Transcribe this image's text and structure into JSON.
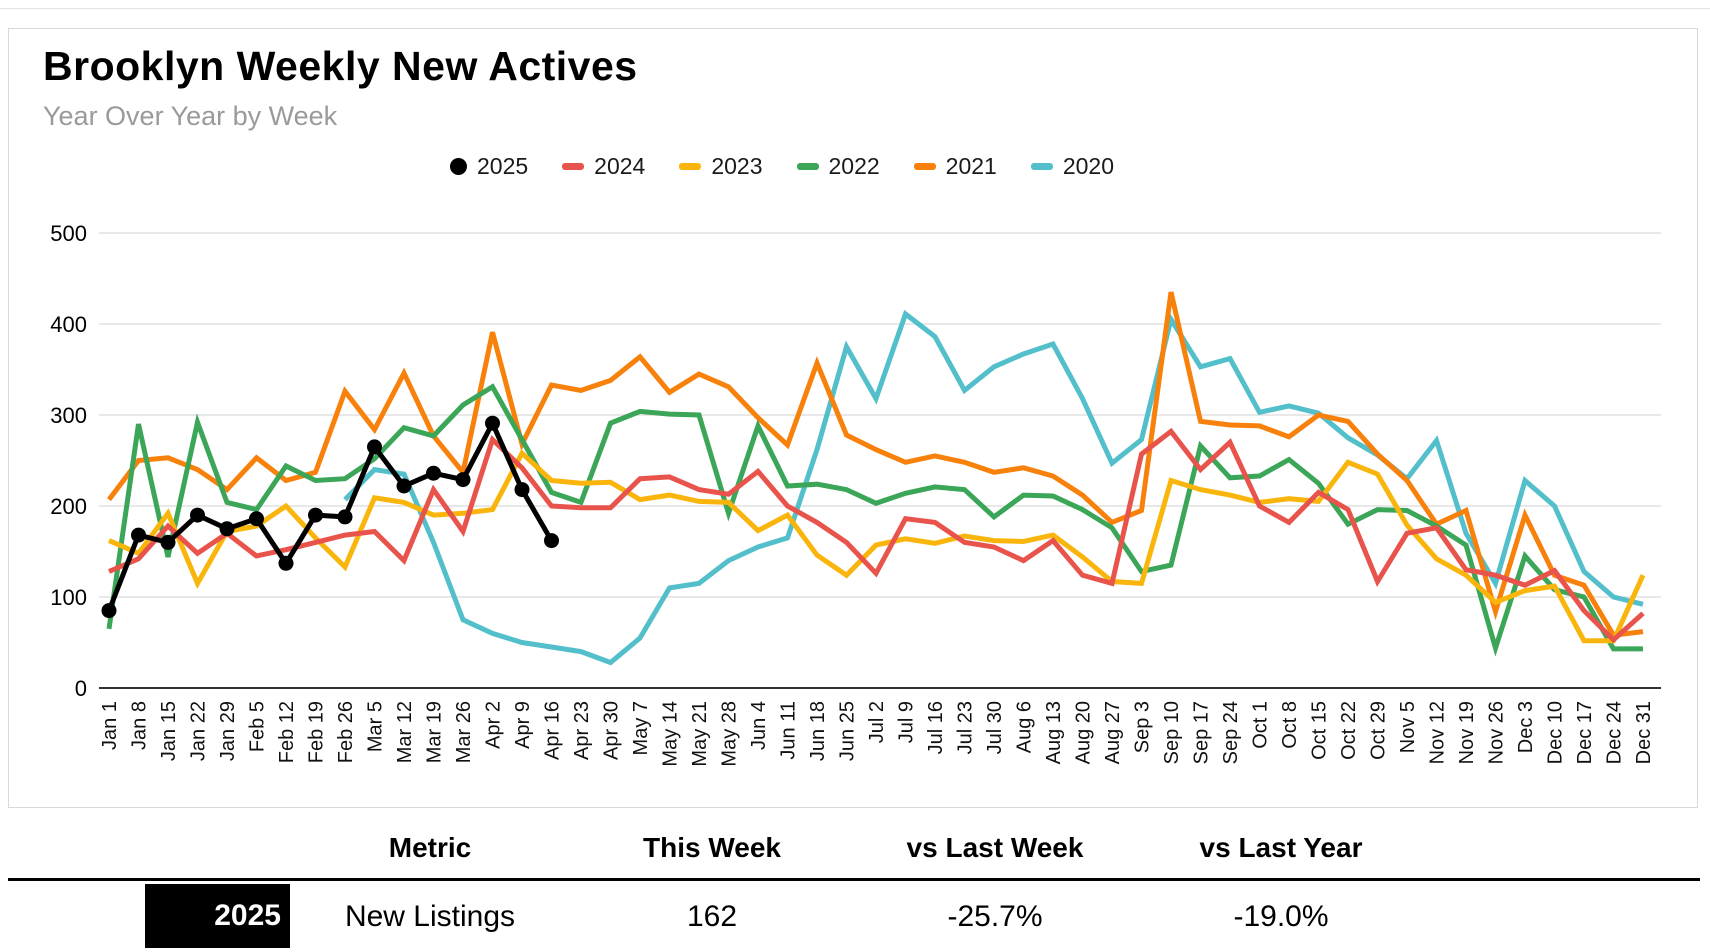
{
  "header": {
    "title": "Brooklyn Weekly New Actives",
    "subtitle": "Year Over Year by Week"
  },
  "colors": {
    "y2025": "#000000",
    "y2024": "#e8544b",
    "y2023": "#f9b50b",
    "y2022": "#3ba558",
    "y2021": "#f8810c",
    "y2020": "#52bfca",
    "grid": "#dadada",
    "axis": "#333333"
  },
  "legend": [
    {
      "label": "2025",
      "color": "#000000",
      "marker": "circle"
    },
    {
      "label": "2024",
      "color": "#e8544b",
      "marker": "dash"
    },
    {
      "label": "2023",
      "color": "#f9b50b",
      "marker": "dash"
    },
    {
      "label": "2022",
      "color": "#3ba558",
      "marker": "dash"
    },
    {
      "label": "2021",
      "color": "#f8810c",
      "marker": "dash"
    },
    {
      "label": "2020",
      "color": "#52bfca",
      "marker": "dash"
    }
  ],
  "chart_data": {
    "type": "line",
    "title": "Brooklyn Weekly New Actives",
    "subtitle": "Year Over Year by Week",
    "xlabel": "",
    "ylabel": "",
    "ylim": [
      0,
      500
    ],
    "yticks": [
      0,
      100,
      200,
      300,
      400,
      500
    ],
    "grid": "horizontal",
    "legend_position": "top-center",
    "x": [
      "Jan 1",
      "Jan 8",
      "Jan 15",
      "Jan 22",
      "Jan 29",
      "Feb 5",
      "Feb 12",
      "Feb 19",
      "Feb 26",
      "Mar 5",
      "Mar 12",
      "Mar 19",
      "Mar 26",
      "Apr 2",
      "Apr 9",
      "Apr 16",
      "Apr 23",
      "Apr 30",
      "May 7",
      "May 14",
      "May 21",
      "May 28",
      "Jun 4",
      "Jun 11",
      "Jun 18",
      "Jun 25",
      "Jul 2",
      "Jul 9",
      "Jul 16",
      "Jul 23",
      "Jul 30",
      "Aug 6",
      "Aug 13",
      "Aug 20",
      "Aug 27",
      "Sep 3",
      "Sep 10",
      "Sep 17",
      "Sep 24",
      "Oct 1",
      "Oct 8",
      "Oct 15",
      "Oct 22",
      "Oct 29",
      "Nov 5",
      "Nov 12",
      "Nov 19",
      "Nov 26",
      "Dec 3",
      "Dec 10",
      "Dec 17",
      "Dec 24",
      "Dec 31"
    ],
    "series": [
      {
        "name": "2020",
        "color": "#52bfca",
        "marker": false,
        "values": [
          null,
          null,
          null,
          null,
          null,
          null,
          null,
          null,
          207,
          240,
          235,
          160,
          75,
          60,
          50,
          45,
          40,
          28,
          55,
          110,
          115,
          140,
          155,
          165,
          262,
          375,
          318,
          411,
          386,
          327,
          353,
          367,
          378,
          318,
          247,
          273,
          405,
          353,
          362,
          303,
          310,
          302,
          275,
          256,
          230,
          272,
          170,
          115,
          228,
          200,
          128,
          100,
          92
        ]
      },
      {
        "name": "2021",
        "color": "#f8810c",
        "marker": false,
        "values": [
          207,
          250,
          253,
          240,
          218,
          253,
          228,
          237,
          326,
          284,
          346,
          277,
          237,
          391,
          268,
          333,
          327,
          338,
          364,
          325,
          345,
          331,
          297,
          267,
          357,
          278,
          262,
          248,
          255,
          248,
          237,
          242,
          233,
          212,
          182,
          195,
          435,
          293,
          289,
          288,
          276,
          300,
          293,
          257,
          228,
          180,
          195,
          84,
          190,
          124,
          113,
          58,
          62
        ]
      },
      {
        "name": "2022",
        "color": "#3ba558",
        "marker": false,
        "values": [
          65,
          290,
          144,
          292,
          204,
          196,
          244,
          228,
          230,
          252,
          286,
          277,
          311,
          331,
          273,
          215,
          204,
          291,
          304,
          301,
          300,
          192,
          288,
          222,
          224,
          218,
          203,
          214,
          221,
          218,
          188,
          212,
          211,
          196,
          176,
          128,
          135,
          266,
          231,
          233,
          251,
          225,
          180,
          196,
          195,
          178,
          157,
          44,
          145,
          108,
          100,
          43,
          43
        ]
      },
      {
        "name": "2023",
        "color": "#f9b50b",
        "marker": false,
        "values": [
          162,
          148,
          192,
          115,
          172,
          178,
          200,
          165,
          133,
          209,
          204,
          190,
          192,
          196,
          258,
          228,
          225,
          226,
          207,
          212,
          205,
          204,
          173,
          190,
          146,
          124,
          157,
          164,
          159,
          167,
          162,
          161,
          168,
          144,
          117,
          115,
          228,
          218,
          212,
          204,
          208,
          205,
          248,
          235,
          179,
          142,
          124,
          94,
          107,
          112,
          52,
          52,
          124
        ]
      },
      {
        "name": "2024",
        "color": "#e8544b",
        "marker": false,
        "values": [
          128,
          142,
          178,
          148,
          170,
          145,
          152,
          160,
          168,
          172,
          140,
          218,
          172,
          273,
          242,
          200,
          198,
          198,
          230,
          232,
          218,
          213,
          238,
          200,
          182,
          160,
          126,
          186,
          182,
          160,
          155,
          140,
          162,
          124,
          115,
          257,
          282,
          240,
          270,
          200,
          182,
          215,
          196,
          117,
          170,
          176,
          130,
          124,
          113,
          129,
          85,
          53,
          82
        ]
      },
      {
        "name": "2025",
        "color": "#000000",
        "marker": true,
        "values": [
          85,
          168,
          160,
          190,
          175,
          186,
          137,
          190,
          188,
          265,
          222,
          236,
          229,
          291,
          218,
          162,
          null,
          null,
          null,
          null,
          null,
          null,
          null,
          null,
          null,
          null,
          null,
          null,
          null,
          null,
          null,
          null,
          null,
          null,
          null,
          null,
          null,
          null,
          null,
          null,
          null,
          null,
          null,
          null,
          null,
          null,
          null,
          null,
          null,
          null,
          null,
          null,
          null
        ]
      }
    ]
  },
  "table": {
    "headers": [
      "Metric",
      "This Week",
      "vs Last Week",
      "vs Last Year"
    ],
    "row": {
      "year": "2025",
      "metric": "New Listings",
      "this_week": "162",
      "vs_last_week": "-25.7%",
      "vs_last_year": "-19.0%"
    }
  }
}
